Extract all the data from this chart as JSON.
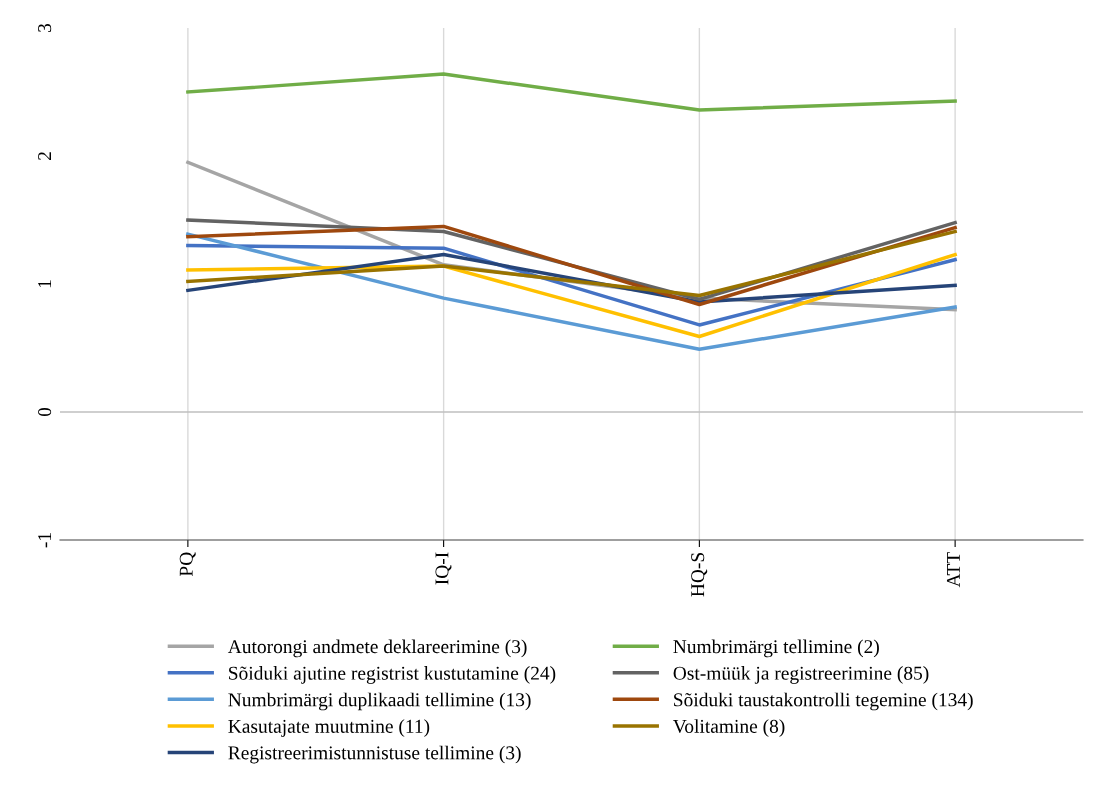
{
  "chart_data": {
    "type": "line",
    "categories": [
      "PQ",
      "IQ-I",
      "HQ-S",
      "ATT"
    ],
    "ylim": [
      -1,
      3
    ],
    "yticks": [
      -1,
      0,
      1,
      2,
      3
    ],
    "grid": "x",
    "legend": "bottom",
    "marker": "none",
    "line_style": "solid",
    "ref_lines": [
      {
        "axis": "y",
        "value": 0,
        "color": "#bfbfbf"
      }
    ],
    "series": [
      {
        "name": "Autorongi andmete deklareerimine (3)",
        "color": "#a5a5a5",
        "values": [
          1.95,
          1.15,
          0.89,
          0.8
        ]
      },
      {
        "name": "Sõiduki ajutine registrist kustutamine (24)",
        "color": "#4472c4",
        "values": [
          1.3,
          1.28,
          0.68,
          1.19
        ]
      },
      {
        "name": "Numbrimärgi duplikaadi tellimine (13)",
        "color": "#5b9bd5",
        "values": [
          1.39,
          0.89,
          0.49,
          0.82
        ]
      },
      {
        "name": "Kasutajate muutmine (11)",
        "color": "#ffc000",
        "values": [
          1.11,
          1.14,
          0.59,
          1.23
        ]
      },
      {
        "name": "Registreerimistunnistuse tellimine (3)",
        "color": "#264478",
        "values": [
          0.95,
          1.23,
          0.86,
          0.99
        ]
      },
      {
        "name": "Numbrimärgi tellimine (2)",
        "color": "#70ad47",
        "values": [
          2.5,
          2.64,
          2.36,
          2.43
        ]
      },
      {
        "name": "Ost-müük ja registreerimine (85)",
        "color": "#636363",
        "values": [
          1.5,
          1.41,
          0.88,
          1.48
        ]
      },
      {
        "name": "Sõiduki taustakontrolli tegemine (134)",
        "color": "#9e480e",
        "values": [
          1.37,
          1.45,
          0.84,
          1.44
        ]
      },
      {
        "name": "Volitamine (8)",
        "color": "#997300",
        "values": [
          1.02,
          1.14,
          0.91,
          1.41
        ]
      }
    ]
  }
}
